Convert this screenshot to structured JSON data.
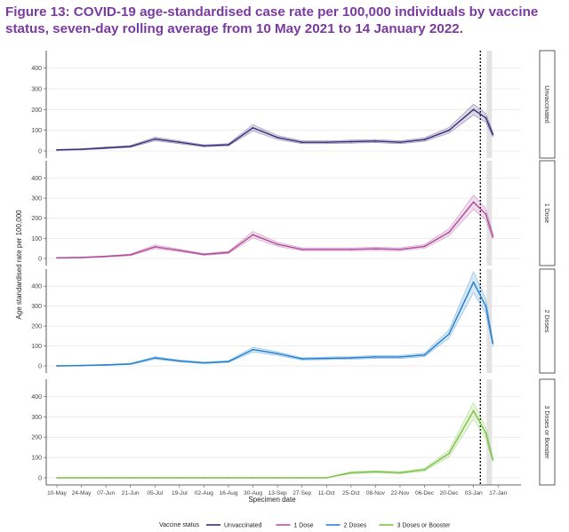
{
  "title": "Figure 13: COVID-19 age-standardised case rate per 100,000 individuals by vaccine status, seven-day rolling average from 10 May 2021 to 14 January 2022.",
  "colors": {
    "Unvaccinated": "#3b2a78",
    "1 Dose": "#b04a9a",
    "2 Doses": "#1f7fd0",
    "3 Doses or Booster": "#7cc242"
  },
  "chart_data": {
    "type": "line",
    "facets": [
      "Unvaccinated",
      "1 Dose",
      "2 Doses",
      "3 Doses or Booster"
    ],
    "xlabel": "Specimen date",
    "ylabel": "Age standardised rate per 100,000",
    "ylim": [
      0,
      450
    ],
    "yticks": [
      0,
      100,
      200,
      300,
      400
    ],
    "grid": true,
    "legend": {
      "title": "Vaccine status",
      "placement": "bottom",
      "entries": [
        "Unvaccinated",
        "1 Dose",
        "2 Doses",
        "3 Doses or Booster"
      ]
    },
    "xticks": [
      "10-May",
      "24-May",
      "07-Jun",
      "21-Jun",
      "05-Jul",
      "19-Jul",
      "02-Aug",
      "16-Aug",
      "30-Aug",
      "13-Sep",
      "27-Sep",
      "11-Oct",
      "25-Oct",
      "08-Nov",
      "22-Nov",
      "06-Dec",
      "20-Dec",
      "03-Jan",
      "17-Jan"
    ],
    "x": [
      "10-May",
      "24-May",
      "07-Jun",
      "21-Jun",
      "05-Jul",
      "19-Jul",
      "02-Aug",
      "16-Aug",
      "30-Aug",
      "13-Sep",
      "27-Sep",
      "11-Oct",
      "25-Oct",
      "08-Nov",
      "22-Nov",
      "06-Dec",
      "20-Dec",
      "03-Jan",
      "10-Jan",
      "14-Jan"
    ],
    "series": [
      {
        "name": "Unvaccinated",
        "values": [
          5,
          8,
          15,
          22,
          58,
          42,
          25,
          30,
          112,
          65,
          42,
          42,
          45,
          48,
          42,
          55,
          100,
          200,
          160,
          80
        ]
      },
      {
        "name": "1 Dose",
        "values": [
          3,
          5,
          10,
          18,
          58,
          40,
          20,
          30,
          118,
          70,
          45,
          45,
          45,
          48,
          45,
          60,
          130,
          280,
          220,
          110
        ]
      },
      {
        "name": "2 Doses",
        "values": [
          0,
          2,
          5,
          10,
          40,
          25,
          15,
          22,
          82,
          62,
          35,
          38,
          40,
          45,
          45,
          55,
          160,
          420,
          300,
          115
        ]
      },
      {
        "name": "3 Doses or Booster",
        "values": [
          0,
          0,
          0,
          0,
          0,
          0,
          0,
          0,
          0,
          0,
          0,
          0,
          25,
          30,
          25,
          40,
          120,
          330,
          220,
          90
        ]
      }
    ],
    "annotations": [
      "vertical dotted line marking end of complete data"
    ]
  }
}
